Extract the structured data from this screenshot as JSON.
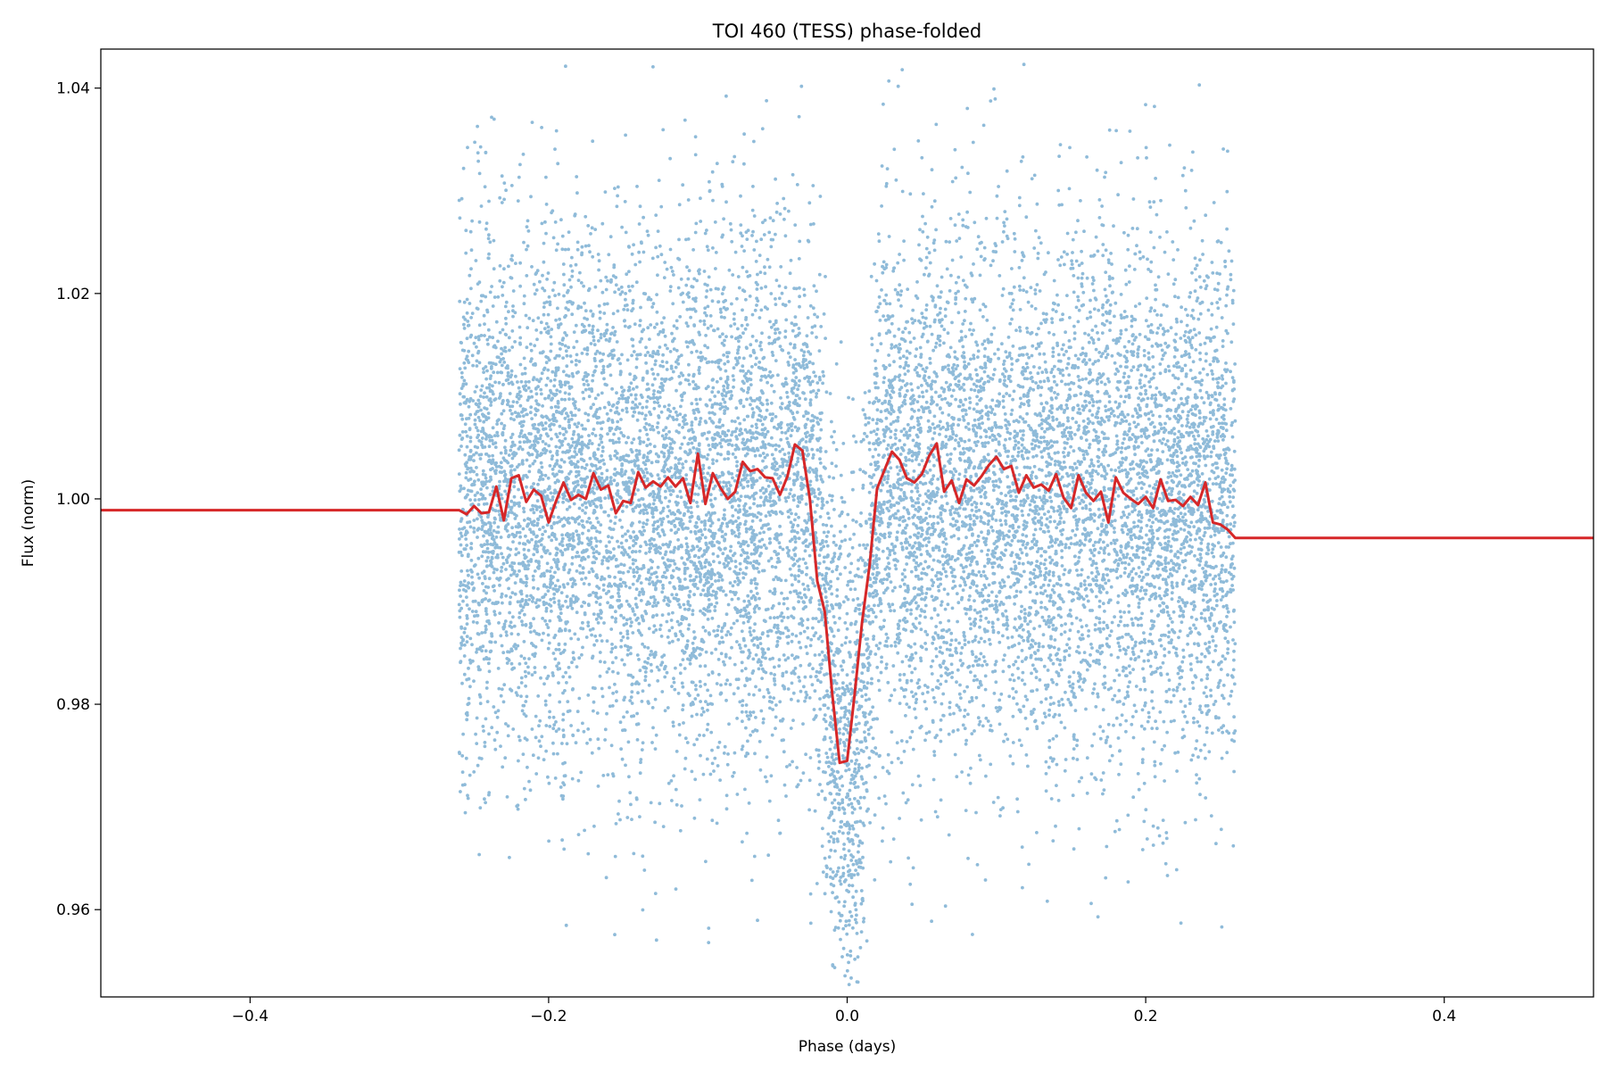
{
  "chart_data": {
    "type": "scatter",
    "title": "TOI 460 (TESS) phase-folded",
    "xlabel": "Phase (days)",
    "ylabel": "Flux (norm)",
    "xlim": [
      -0.5,
      0.5
    ],
    "ylim": [
      0.9515,
      1.0438
    ],
    "xticks": [
      -0.4,
      -0.2,
      0.0,
      0.2,
      0.4
    ],
    "xtick_labels": [
      "−0.4",
      "−0.2",
      "0.0",
      "0.2",
      "0.4"
    ],
    "yticks": [
      0.96,
      0.98,
      1.0,
      1.02,
      1.04
    ],
    "ytick_labels": [
      "0.96",
      "0.98",
      "1.00",
      "1.02",
      "1.04"
    ],
    "grid": false,
    "legend": "none",
    "series": [
      {
        "kind": "scatter",
        "color": "#1f77b4",
        "description": "phase-folded photometry, ~13000 points",
        "x_range": [
          -0.26,
          0.26
        ],
        "baseline_flux": 1.0,
        "scatter_std": 0.0128,
        "transit_center": 0.0,
        "transit_halfwidth": 0.02,
        "transit_depth": 0.026
      },
      {
        "kind": "line",
        "color": "#d62728",
        "description": "binned model",
        "x": [
          -0.5,
          -0.26,
          -0.255,
          -0.25,
          -0.245,
          -0.24,
          -0.235,
          -0.23,
          -0.225,
          -0.22,
          -0.215,
          -0.21,
          -0.205,
          -0.2,
          -0.195,
          -0.19,
          -0.185,
          -0.18,
          -0.175,
          -0.17,
          -0.165,
          -0.16,
          -0.155,
          -0.15,
          -0.145,
          -0.14,
          -0.135,
          -0.13,
          -0.125,
          -0.12,
          -0.115,
          -0.11,
          -0.105,
          -0.1,
          -0.095,
          -0.09,
          -0.085,
          -0.08,
          -0.075,
          -0.07,
          -0.065,
          -0.06,
          -0.055,
          -0.05,
          -0.045,
          -0.04,
          -0.035,
          -0.03,
          -0.025,
          -0.02,
          -0.015,
          -0.01,
          -0.005,
          0.0,
          0.005,
          0.01,
          0.015,
          0.02,
          0.025,
          0.03,
          0.035,
          0.04,
          0.045,
          0.05,
          0.055,
          0.06,
          0.065,
          0.07,
          0.075,
          0.08,
          0.085,
          0.09,
          0.095,
          0.1,
          0.105,
          0.11,
          0.115,
          0.12,
          0.125,
          0.13,
          0.135,
          0.14,
          0.145,
          0.15,
          0.155,
          0.16,
          0.165,
          0.17,
          0.175,
          0.18,
          0.185,
          0.19,
          0.195,
          0.2,
          0.205,
          0.21,
          0.215,
          0.22,
          0.225,
          0.23,
          0.235,
          0.24,
          0.245,
          0.25,
          0.255,
          0.26,
          0.5
        ],
        "y": [
          0.9989,
          0.9989,
          0.9985,
          0.9993,
          0.9986,
          0.9987,
          1.0012,
          0.9979,
          1.002,
          1.0023,
          0.9997,
          1.0009,
          1.0003,
          0.9977,
          0.9998,
          1.0016,
          0.9999,
          1.0004,
          1.0,
          1.0025,
          1.0009,
          1.0013,
          0.9986,
          0.9998,
          0.9996,
          1.0026,
          1.0011,
          1.0017,
          1.0012,
          1.0021,
          1.0012,
          1.002,
          0.9996,
          1.0044,
          0.9995,
          1.0025,
          1.0011,
          1.0,
          1.0007,
          1.0036,
          1.0027,
          1.0029,
          1.0021,
          1.002,
          1.0004,
          1.0022,
          1.0053,
          1.0047,
          1.0,
          0.992,
          0.989,
          0.981,
          0.9743,
          0.9745,
          0.981,
          0.988,
          0.9935,
          1.001,
          1.0028,
          1.0046,
          1.0038,
          1.002,
          1.0016,
          1.0024,
          1.0042,
          1.0054,
          1.0007,
          1.0018,
          0.9996,
          1.0019,
          1.0013,
          1.0022,
          1.0033,
          1.0041,
          1.0029,
          1.0032,
          1.0006,
          1.0023,
          1.0011,
          1.0014,
          1.0008,
          1.0024,
          1.0001,
          0.9991,
          1.0023,
          1.0006,
          0.9998,
          1.0007,
          0.9977,
          1.0021,
          1.0006,
          1.0,
          0.9995,
          1.0002,
          0.9991,
          1.0019,
          0.9998,
          0.9999,
          0.9993,
          1.0002,
          0.9994,
          1.0016,
          0.9977,
          0.9975,
          0.997,
          0.9962,
          0.9962
        ]
      }
    ]
  }
}
